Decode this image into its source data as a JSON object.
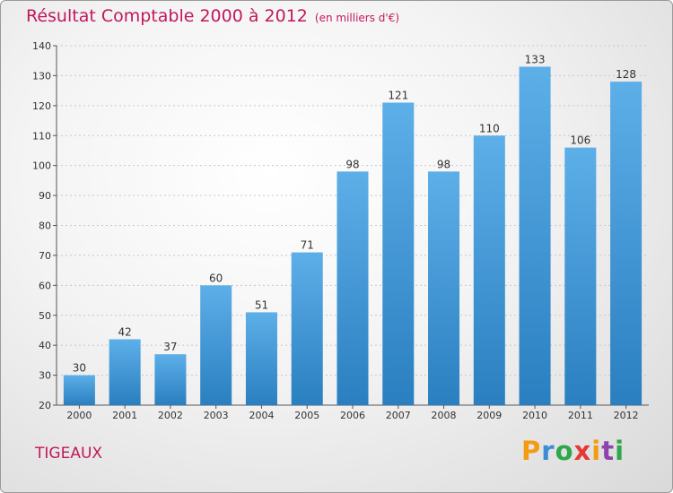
{
  "header": {
    "title": "Résultat Comptable 2000 à 2012",
    "unit": "(en milliers d'€)"
  },
  "location": "TIGEAUX",
  "brand": {
    "letters": [
      "P",
      "r",
      "o",
      "x",
      "i",
      "t",
      "i"
    ],
    "colors": [
      "#f39c12",
      "#3c8dd8",
      "#2ea84a",
      "#e53935",
      "#f39c12",
      "#8e44ad",
      "#2ea84a"
    ]
  },
  "colors": {
    "bar_top": "#5dafe8",
    "bar_bottom": "#2a7fc0",
    "grid": "#c8c8c8",
    "title": "#c2185b"
  },
  "chart_data": {
    "type": "bar",
    "title": "Résultat Comptable 2000 à 2012",
    "subtitle": "(en milliers d'€)",
    "categories": [
      "2000",
      "2001",
      "2002",
      "2003",
      "2004",
      "2005",
      "2006",
      "2007",
      "2008",
      "2009",
      "2010",
      "2011",
      "2012"
    ],
    "values": [
      30,
      42,
      37,
      60,
      51,
      71,
      98,
      121,
      98,
      110,
      133,
      106,
      128
    ],
    "ylim": [
      20,
      140
    ],
    "yticks": [
      20,
      30,
      40,
      50,
      60,
      70,
      80,
      90,
      100,
      110,
      120,
      130,
      140
    ],
    "xlabel": "",
    "ylabel": "",
    "grid": true
  }
}
